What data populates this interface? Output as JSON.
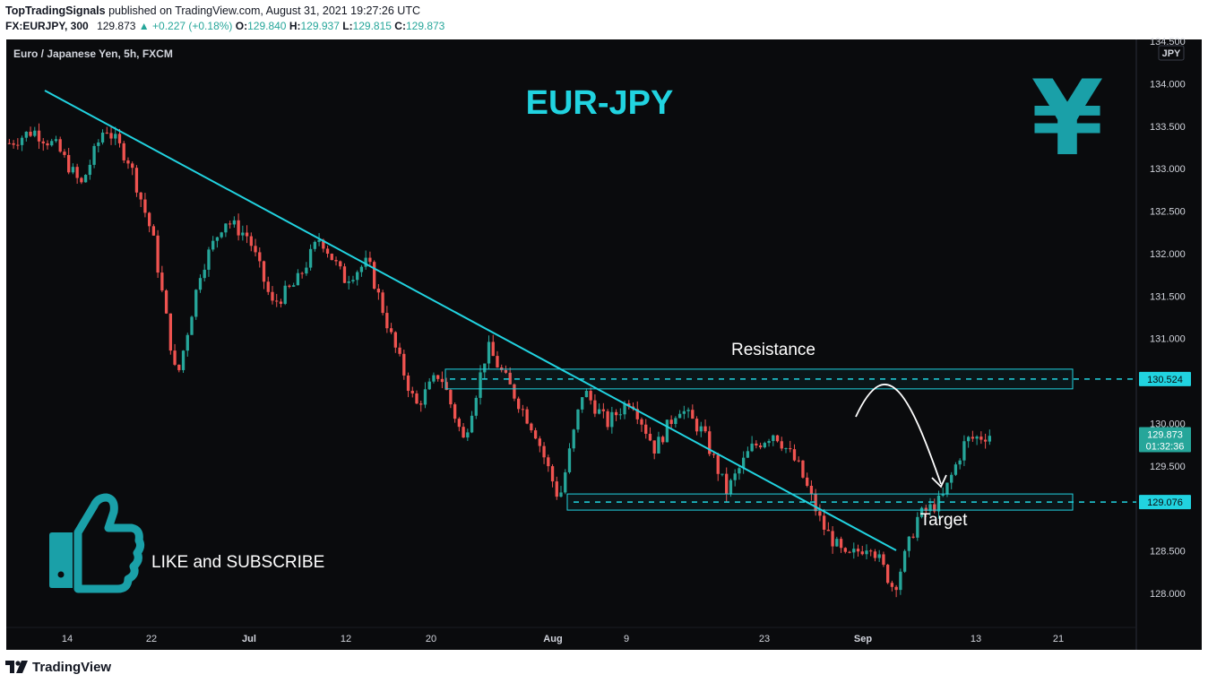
{
  "header": {
    "author": "TopTradingSignals",
    "published_text": "published on TradingView.com, August 31, 2021 19:27:26 UTC",
    "symbol": "FX:EURJPY, 300",
    "last": "129.873",
    "change": "▲ +0.227 (+0.18%)",
    "o_label": "O:",
    "o": "129.840",
    "h_label": "H:",
    "h": "129.937",
    "l_label": "L:",
    "l": "129.815",
    "c_label": "C:",
    "c": "129.873"
  },
  "chart_data": {
    "type": "candlestick",
    "instrument_label": "Euro / Japanese Yen, 5h, FXCM",
    "title": "EUR-JPY",
    "currency_badge": "JPY",
    "currency_symbol": "¥",
    "y_ticks": [
      "134.500",
      "134.000",
      "133.500",
      "133.000",
      "132.500",
      "132.000",
      "131.500",
      "131.000",
      "130.000",
      "129.500",
      "128.500",
      "128.000"
    ],
    "y_range": [
      127.6,
      134.5
    ],
    "x_ticks": [
      "14",
      "22",
      "Jul",
      "12",
      "20",
      "Aug",
      "9",
      "23",
      "Sep",
      "13",
      "21"
    ],
    "price_path": [
      [
        "14",
        133.3
      ],
      [
        "15",
        133.45
      ],
      [
        "16",
        133.25
      ],
      [
        "17",
        132.8
      ],
      [
        "18",
        133.5
      ],
      [
        "19",
        133.1
      ],
      [
        "20",
        132.2
      ],
      [
        "21",
        130.5
      ],
      [
        "22",
        131.8
      ],
      [
        "23",
        132.4
      ],
      [
        "24",
        132.2
      ],
      [
        "25",
        131.4
      ],
      [
        "26",
        131.65
      ],
      [
        "27",
        132.2
      ],
      [
        "28",
        131.7
      ],
      [
        "29",
        131.9
      ],
      [
        "30",
        131.0
      ],
      [
        "Jul",
        130.2
      ],
      [
        "2",
        130.6
      ],
      [
        "5",
        129.8
      ],
      [
        "6",
        130.9
      ],
      [
        "7",
        130.4
      ],
      [
        "8",
        129.9
      ],
      [
        "9",
        129.1
      ],
      [
        "12",
        130.4
      ],
      [
        "13",
        130.0
      ],
      [
        "14",
        130.3
      ],
      [
        "15",
        129.7
      ],
      [
        "16",
        130.2
      ],
      [
        "19",
        129.9
      ],
      [
        "20",
        129.2
      ],
      [
        "21",
        129.7
      ],
      [
        "22",
        129.9
      ],
      [
        "23",
        129.5
      ],
      [
        "26",
        128.8
      ],
      [
        "27",
        128.4
      ],
      [
        "28",
        128.6
      ],
      [
        "29",
        128.05
      ],
      [
        "30",
        128.9
      ],
      [
        "31",
        129.1
      ],
      [
        "Sep",
        129.8
      ],
      [
        "Sep 1",
        129.873
      ]
    ],
    "last_price": "129.873",
    "countdown": "01:32:36",
    "levels": [
      {
        "name": "Resistance",
        "price": 130.524,
        "label": "130.524"
      },
      {
        "name": "Target",
        "price": 129.076,
        "label": "129.076"
      }
    ],
    "annotations": {
      "resistance": "Resistance",
      "target": "Target",
      "cta": "LIKE and SUBSCRIBE"
    },
    "colors": {
      "background": "#0a0b0d",
      "up": "#26a69a",
      "down": "#ef5350",
      "trendline": "#21d3e0",
      "title": "#21d3e0",
      "badge_last": "#26a69a",
      "thumb": "#1aa0a8"
    }
  },
  "footer": {
    "brand": "TradingView"
  }
}
